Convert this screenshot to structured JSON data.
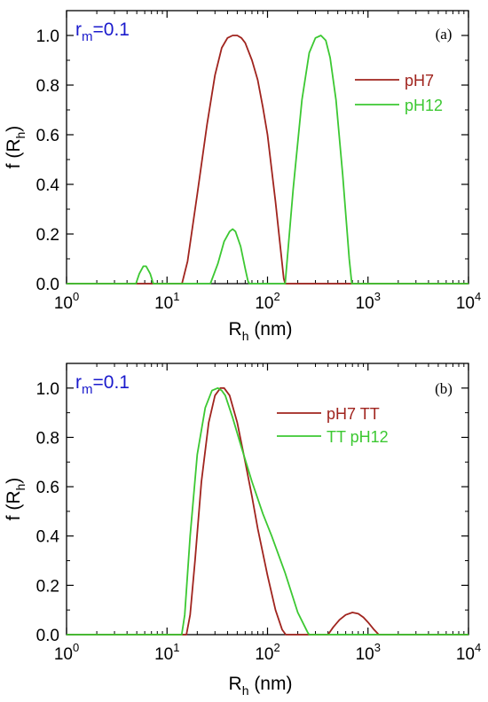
{
  "colors": {
    "red": "#a0241e",
    "green": "#3cc832",
    "blue": "#1a1acc",
    "frame": "#000000"
  },
  "chart_data": [
    {
      "type": "line",
      "panel_label": "(a)",
      "annotation": {
        "symbol": "r",
        "subscript": "m",
        "value": "=0.1"
      },
      "xlabel": {
        "main": "R",
        "sub": "h",
        "tail": " (nm)"
      },
      "ylabel": {
        "main": "f (R",
        "sub": "h",
        "tail": ")"
      },
      "xscale": "log",
      "xlim": [
        1,
        10000
      ],
      "ylim": [
        0,
        1.1
      ],
      "xticks": [
        {
          "value": 1,
          "base": "10",
          "exp": "0"
        },
        {
          "value": 10,
          "base": "10",
          "exp": "1"
        },
        {
          "value": 100,
          "base": "10",
          "exp": "2"
        },
        {
          "value": 1000,
          "base": "10",
          "exp": "3"
        },
        {
          "value": 10000,
          "base": "10",
          "exp": "4"
        }
      ],
      "yticks": [
        0.0,
        0.2,
        0.4,
        0.6,
        0.8,
        1.0
      ],
      "ytick_labels": [
        "0.0",
        "0.2",
        "0.4",
        "0.6",
        "0.8",
        "1.0"
      ],
      "grid": false,
      "legend_position": "top-right",
      "series": [
        {
          "name": "pH7",
          "color": "#a0241e",
          "x": [
            1,
            14.1,
            16,
            20,
            25,
            30,
            35,
            40,
            45,
            50,
            55,
            60,
            70,
            80,
            90,
            100,
            120,
            145,
            150,
            10000
          ],
          "y": [
            0,
            0,
            0.09,
            0.36,
            0.64,
            0.84,
            0.95,
            0.99,
            1.0,
            1.0,
            0.99,
            0.97,
            0.9,
            0.82,
            0.71,
            0.6,
            0.33,
            0.02,
            0,
            0
          ]
        },
        {
          "name": "pH12",
          "color": "#3cc832",
          "x": [
            1,
            4.9,
            5.3,
            5.8,
            6.2,
            6.8,
            7.3,
            27,
            32,
            37,
            42,
            45,
            48,
            54,
            60,
            64,
            66,
            150,
            180,
            220,
            260,
            300,
            340,
            380,
            420,
            480,
            560,
            650,
            690,
            10000
          ],
          "y": [
            0,
            0,
            0.04,
            0.07,
            0.07,
            0.04,
            0,
            0,
            0.08,
            0.17,
            0.21,
            0.22,
            0.21,
            0.15,
            0.06,
            0.01,
            0,
            0,
            0.38,
            0.74,
            0.93,
            0.99,
            1.0,
            0.98,
            0.91,
            0.74,
            0.44,
            0.1,
            0,
            0
          ]
        }
      ]
    },
    {
      "type": "line",
      "panel_label": "(b)",
      "annotation": {
        "symbol": "r",
        "subscript": "m",
        "value": "=0.1"
      },
      "xlabel": {
        "main": "R",
        "sub": "h",
        "tail": " (nm)"
      },
      "ylabel": {
        "main": "f (R",
        "sub": "h",
        "tail": ")"
      },
      "xscale": "log",
      "xlim": [
        1,
        10000
      ],
      "ylim": [
        0,
        1.1
      ],
      "xticks": [
        {
          "value": 1,
          "base": "10",
          "exp": "0"
        },
        {
          "value": 10,
          "base": "10",
          "exp": "1"
        },
        {
          "value": 100,
          "base": "10",
          "exp": "2"
        },
        {
          "value": 1000,
          "base": "10",
          "exp": "3"
        },
        {
          "value": 10000,
          "base": "10",
          "exp": "4"
        }
      ],
      "yticks": [
        0.0,
        0.2,
        0.4,
        0.6,
        0.8,
        1.0
      ],
      "ytick_labels": [
        "0.0",
        "0.2",
        "0.4",
        "0.6",
        "0.8",
        "1.0"
      ],
      "grid": false,
      "legend_position": "top-right",
      "series": [
        {
          "name": "pH7 TT",
          "color": "#a0241e",
          "x": [
            1,
            15.6,
            17,
            19,
            22,
            26,
            30,
            34,
            37,
            42,
            50,
            60,
            70,
            80,
            100,
            120,
            140,
            152,
            400,
            450,
            520,
            600,
            700,
            800,
            900,
            1000,
            1150,
            1280,
            10000
          ],
          "y": [
            0,
            0,
            0.08,
            0.3,
            0.62,
            0.86,
            0.97,
            1.0,
            1.0,
            0.97,
            0.86,
            0.7,
            0.56,
            0.43,
            0.24,
            0.1,
            0.02,
            0,
            0,
            0.03,
            0.06,
            0.08,
            0.09,
            0.085,
            0.07,
            0.05,
            0.02,
            0,
            0
          ]
        },
        {
          "name": "TT pH12",
          "color": "#3cc832",
          "x": [
            1,
            14,
            15,
            17,
            20,
            24,
            28,
            32,
            35,
            38,
            45,
            55,
            70,
            90,
            110,
            150,
            200,
            250,
            260,
            10000
          ],
          "y": [
            0,
            0,
            0.08,
            0.4,
            0.73,
            0.92,
            0.99,
            1.0,
            0.99,
            0.97,
            0.88,
            0.76,
            0.62,
            0.49,
            0.4,
            0.25,
            0.09,
            0.01,
            0,
            0
          ]
        }
      ]
    }
  ]
}
